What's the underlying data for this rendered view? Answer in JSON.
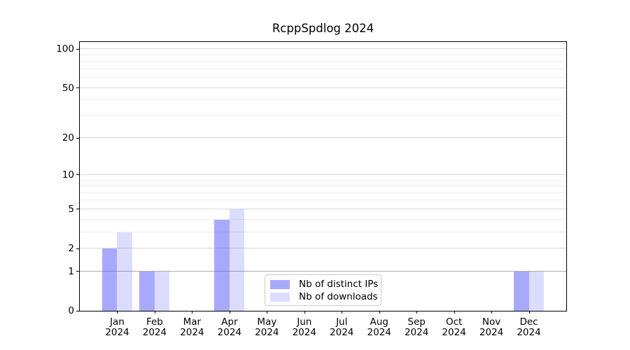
{
  "chart_data": {
    "type": "bar",
    "title": "RcppSpdlog 2024",
    "categories": [
      "Jan",
      "Feb",
      "Mar",
      "Apr",
      "May",
      "Jun",
      "Jul",
      "Aug",
      "Sep",
      "Oct",
      "Nov",
      "Dec"
    ],
    "xtick_year": "2024",
    "series": [
      {
        "key": "distinct-ips",
        "name": "Nb of distinct IPs",
        "color": "#aaaaf8",
        "fill": "rgba(80,80,248,0.49)",
        "values": [
          2,
          1,
          0,
          4,
          0,
          0,
          0,
          0,
          0,
          0,
          0,
          1
        ]
      },
      {
        "key": "downloads",
        "name": "Nb of downloads",
        "color": "#dcdcf8",
        "fill": "rgba(80,80,248,0.20)",
        "values": [
          3,
          1,
          0,
          5,
          0,
          0,
          0,
          0,
          0,
          0,
          0,
          1
        ]
      }
    ],
    "yscale": "log1p",
    "yticks": [
      0,
      1,
      2,
      5,
      10,
      20,
      50,
      100
    ],
    "minor_gridlines": [
      3,
      4,
      6,
      7,
      8,
      9,
      30,
      40,
      60,
      70,
      80,
      90
    ],
    "emphasized_gridline": 1,
    "ylim": [
      0,
      114
    ],
    "xlabel": "",
    "ylabel": "",
    "grid": true,
    "legend_position": "lower center-left",
    "colors": {
      "grid_major": "#d6d6d6",
      "grid_minor": "#ededed",
      "grid_emphasis": "#ababab",
      "spine": "#000000",
      "text": "#000000",
      "legend_border": "#cccccc"
    }
  }
}
